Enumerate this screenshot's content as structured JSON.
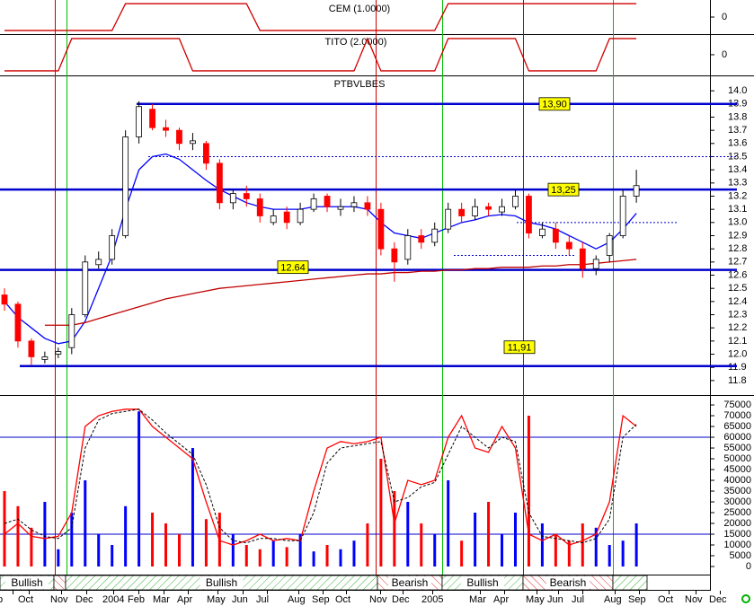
{
  "chart_data": [
    {
      "type": "step",
      "title": "CEM (1.0000)",
      "color": "#d00000",
      "ylim": [
        -1.27,
        1.27
      ],
      "yticks": [
        0
      ],
      "values": [
        -1,
        -1,
        -1,
        -1,
        -1,
        -1,
        -1,
        -1,
        -1,
        1,
        1,
        1,
        1,
        1,
        1,
        1,
        1,
        1,
        1,
        -1,
        -1,
        -1,
        -1,
        -1,
        -1,
        -1,
        -1,
        -1,
        -1,
        -1,
        -1,
        -1,
        -1,
        1,
        1,
        1,
        1,
        1,
        1,
        1,
        1,
        1,
        1,
        1,
        1,
        1,
        1,
        1
      ]
    },
    {
      "type": "step",
      "title": "TITO (2.0000)",
      "color": "#d00000",
      "ylim": [
        -1.28,
        1.22
      ],
      "yticks": [
        0
      ],
      "values": [
        -1,
        -1,
        -1,
        -1,
        -1,
        1,
        1,
        1,
        1,
        1,
        1,
        1,
        1,
        1,
        -1,
        -1,
        -1,
        -1,
        -1,
        -1,
        -1,
        -1,
        -1,
        -1,
        -1,
        -1,
        -1,
        1,
        -1,
        -1,
        -1,
        -1,
        -1,
        1,
        1,
        1,
        1,
        1,
        1,
        -1,
        -1,
        -1,
        -1,
        -1,
        -1,
        1,
        1,
        1
      ]
    },
    {
      "type": "candlestick",
      "title": "PTBVLBES",
      "up_color": "#ffffff",
      "down_color": "#ff0000",
      "ylim": [
        11.69,
        14.11
      ],
      "yticks": [
        {
          "value": 14.0,
          "label": "14.0"
        },
        13.9,
        13.8,
        13.7,
        13.6,
        13.5,
        13.4,
        13.3,
        13.2,
        13.1,
        {
          "value": 13.0,
          "label": "13.0"
        },
        12.9,
        12.8,
        12.7,
        12.6,
        12.5,
        12.4,
        12.3,
        12.2,
        12.1,
        {
          "value": 12.0,
          "label": "12.0"
        },
        11.9,
        11.8
      ],
      "open": [
        12.45,
        12.38,
        12.1,
        11.96,
        12.0,
        12.05,
        12.3,
        12.68,
        12.72,
        12.9,
        13.65,
        13.86,
        13.72,
        13.7,
        13.6,
        13.6,
        13.45,
        13.15,
        13.22,
        13.18,
        13.0,
        13.08,
        13.0,
        13.1,
        13.2,
        13.1,
        13.12,
        13.15,
        13.1,
        12.8,
        12.72,
        12.9,
        12.85,
        12.95,
        13.1,
        13.05,
        13.12,
        13.08,
        13.12,
        13.2,
        12.9,
        12.95,
        12.85,
        12.8,
        12.65,
        12.75,
        12.9,
        13.2
      ],
      "high": [
        12.5,
        12.4,
        12.12,
        12.02,
        12.05,
        12.35,
        12.75,
        12.78,
        12.95,
        13.7,
        13.92,
        13.9,
        13.78,
        13.72,
        13.68,
        13.62,
        13.48,
        13.25,
        13.28,
        13.22,
        13.1,
        13.12,
        13.15,
        13.22,
        13.22,
        13.18,
        13.2,
        13.2,
        13.15,
        12.85,
        12.95,
        12.95,
        13.0,
        13.15,
        13.15,
        13.18,
        13.15,
        13.18,
        13.25,
        13.22,
        13.0,
        13.0,
        12.9,
        12.85,
        12.75,
        12.92,
        13.25,
        13.4
      ],
      "low": [
        12.33,
        12.05,
        11.92,
        11.93,
        11.97,
        12.0,
        12.28,
        12.65,
        12.68,
        12.88,
        13.6,
        13.7,
        13.65,
        13.55,
        13.55,
        13.4,
        13.1,
        13.1,
        13.12,
        13.0,
        12.98,
        12.95,
        12.98,
        13.08,
        13.08,
        13.05,
        13.08,
        13.05,
        12.75,
        12.55,
        12.68,
        12.8,
        12.82,
        12.92,
        13.0,
        13.02,
        13.05,
        13.05,
        13.1,
        12.88,
        12.88,
        12.8,
        12.75,
        12.58,
        12.6,
        12.7,
        12.88,
        13.15
      ],
      "close": [
        12.38,
        12.1,
        11.98,
        11.98,
        12.02,
        12.3,
        12.7,
        12.72,
        12.9,
        13.65,
        13.88,
        13.72,
        13.7,
        13.6,
        13.62,
        13.45,
        13.15,
        13.22,
        13.18,
        13.05,
        13.05,
        13.0,
        13.1,
        13.18,
        13.12,
        13.12,
        13.15,
        13.1,
        12.8,
        12.7,
        12.9,
        12.85,
        12.95,
        13.1,
        13.05,
        13.12,
        13.1,
        13.12,
        13.2,
        12.92,
        12.95,
        12.85,
        12.8,
        12.65,
        12.72,
        12.9,
        13.2,
        13.28
      ],
      "lines": [
        {
          "color": "#0000ff",
          "values": [
            12.4,
            12.28,
            12.2,
            12.12,
            12.08,
            12.1,
            12.25,
            12.5,
            12.75,
            13.1,
            13.4,
            13.5,
            13.52,
            13.48,
            13.4,
            13.32,
            13.25,
            13.2,
            13.15,
            13.12,
            13.1,
            13.1,
            13.1,
            13.12,
            13.12,
            13.12,
            13.12,
            13.1,
            13.0,
            12.92,
            12.9,
            12.88,
            12.92,
            12.96,
            13.0,
            13.02,
            13.05,
            13.06,
            13.05,
            13.0,
            12.98,
            12.95,
            12.9,
            12.85,
            12.8,
            12.85,
            12.95,
            13.07
          ]
        },
        {
          "color": "#c00000",
          "values": [
            null,
            null,
            null,
            12.22,
            12.22,
            12.22,
            12.24,
            12.27,
            12.3,
            12.33,
            12.36,
            12.39,
            12.42,
            12.44,
            12.46,
            12.48,
            12.5,
            12.51,
            12.52,
            12.53,
            12.54,
            12.55,
            12.56,
            12.57,
            12.58,
            12.59,
            12.6,
            12.61,
            12.61,
            12.62,
            12.62,
            12.63,
            12.63,
            12.64,
            12.64,
            12.65,
            12.65,
            12.66,
            12.66,
            12.66,
            12.67,
            12.67,
            12.68,
            12.68,
            12.69,
            12.7,
            12.71,
            12.72
          ]
        }
      ],
      "level_color": "#0000cc",
      "levels": [
        {
          "value": 13.9,
          "label": "13,90"
        },
        {
          "value": 13.25,
          "label": "13,25"
        },
        {
          "value": 12.64,
          "label": "12.64"
        },
        {
          "value": 11.91,
          "label": "11,91"
        }
      ],
      "dotted_levels": [
        13.5,
        13.0,
        12.75
      ]
    },
    {
      "type": "volume",
      "up_color": "#0000ff",
      "down_color": "#ff0000",
      "ylim": [
        -3750,
        79600
      ],
      "yticks": [
        0,
        5000,
        10000,
        15000,
        20000,
        25000,
        30000,
        35000,
        40000,
        45000,
        50000,
        55000,
        60000,
        65000,
        70000,
        75000
      ],
      "values": [
        35000,
        28000,
        18000,
        30000,
        8000,
        25000,
        40000,
        15000,
        10000,
        28000,
        72000,
        25000,
        20000,
        15000,
        55000,
        22000,
        25000,
        15000,
        10000,
        8000,
        12000,
        9000,
        15000,
        7000,
        10000,
        8000,
        12000,
        20000,
        50000,
        35000,
        30000,
        20000,
        15000,
        40000,
        12000,
        25000,
        30000,
        15000,
        25000,
        70000,
        20000,
        15000,
        12000,
        20000,
        18000,
        10000,
        12000,
        20000
      ],
      "lines": [
        {
          "color": "#ff0000",
          "dashed": false,
          "values": [
            15000,
            20000,
            14000,
            13000,
            14000,
            25000,
            65000,
            70000,
            72000,
            73000,
            73000,
            65000,
            60000,
            55000,
            50000,
            30000,
            12000,
            10000,
            12000,
            15000,
            12000,
            13000,
            12000,
            35000,
            55000,
            58000,
            57000,
            58000,
            60000,
            20000,
            40000,
            38000,
            40000,
            60000,
            70000,
            55000,
            53000,
            65000,
            55000,
            15000,
            12000,
            15000,
            10000,
            12000,
            15000,
            30000,
            70000,
            65000
          ]
        },
        {
          "color": "#000000",
          "dashed": true,
          "values": [
            20000,
            22000,
            17000,
            14000,
            13000,
            18000,
            55000,
            68000,
            71000,
            72000,
            73000,
            68000,
            62000,
            57000,
            52000,
            38000,
            18000,
            12000,
            11000,
            13000,
            13000,
            12000,
            12000,
            25000,
            48000,
            55000,
            56000,
            57000,
            58000,
            30000,
            32000,
            37000,
            39000,
            52000,
            65000,
            60000,
            55000,
            60000,
            58000,
            25000,
            14000,
            13000,
            12000,
            11000,
            13000,
            22000,
            60000,
            66000
          ]
        }
      ],
      "level_color": "#0000cc",
      "levels": [
        60000,
        15000
      ],
      "month_labels": [
        "p",
        "Oct",
        "Nov",
        "Dec",
        "2004",
        "Feb",
        "Mar",
        "Apr",
        "May",
        "Jun",
        "Jul",
        "Aug",
        "Sep",
        "Oct",
        "Nov",
        "Dec",
        "2005",
        "Mar",
        "Apr",
        "May",
        "Jun",
        "Jul",
        "Aug",
        "Sep",
        "Oct",
        "Nov",
        "Dec"
      ],
      "signals": [
        "Bullish",
        "Bullish",
        "Bearish",
        "Bullish",
        "Bearish"
      ]
    }
  ]
}
